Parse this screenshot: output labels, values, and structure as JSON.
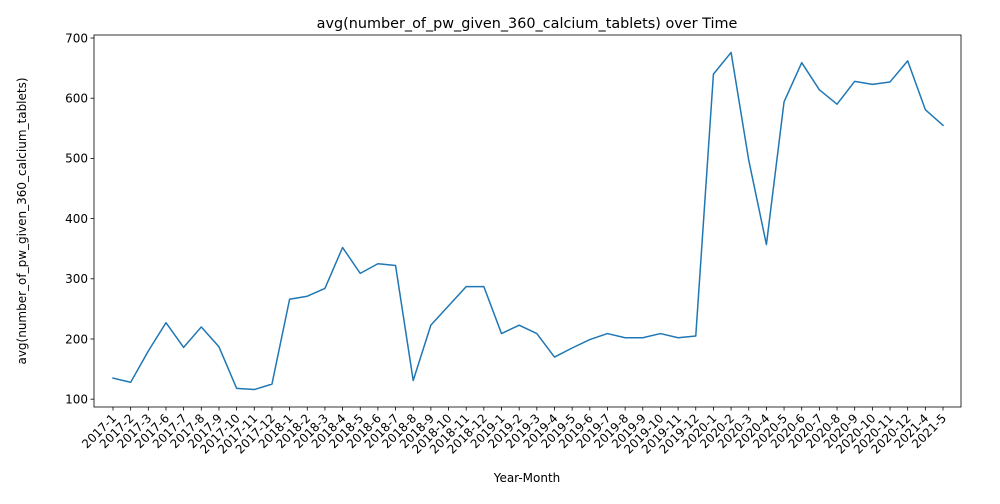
{
  "chart_data": {
    "type": "line",
    "title": "avg(number_of_pw_given_360_calcium_tablets) over Time",
    "xlabel": "Year-Month",
    "ylabel": "avg(number_of_pw_given_360_calcium_tablets)",
    "categories": [
      "2017-1",
      "2017-2",
      "2017-3",
      "2017-6",
      "2017-7",
      "2017-8",
      "2017-9",
      "2017-10",
      "2017-11",
      "2017-12",
      "2018-1",
      "2018-2",
      "2018-3",
      "2018-4",
      "2018-5",
      "2018-6",
      "2018-7",
      "2018-8",
      "2018-9",
      "2018-10",
      "2018-11",
      "2018-12",
      "2019-1",
      "2019-2",
      "2019-3",
      "2019-4",
      "2019-5",
      "2019-6",
      "2019-7",
      "2019-8",
      "2019-9",
      "2019-10",
      "2019-11",
      "2019-12",
      "2020-1",
      "2020-2",
      "2020-3",
      "2020-4",
      "2020-5",
      "2020-6",
      "2020-7",
      "2020-8",
      "2020-9",
      "2020-10",
      "2020-11",
      "2020-12",
      "2021-4",
      "2021-5"
    ],
    "series": [
      {
        "values": [
          135,
          128,
          180,
          227,
          186,
          220,
          187,
          118,
          116,
          125,
          266,
          271,
          284,
          352,
          309,
          325,
          322,
          131,
          223,
          255,
          287,
          287,
          209,
          223,
          209,
          170,
          185,
          199,
          209,
          202,
          202,
          209,
          202,
          205,
          640,
          676,
          497,
          357,
          594,
          659,
          614,
          590,
          628,
          623,
          627,
          662,
          581,
          555
        ],
        "color": "#1f77b4"
      }
    ],
    "yticks": [
      100,
      200,
      300,
      400,
      500,
      600,
      700
    ],
    "ylim": [
      87,
      705
    ],
    "grid": false,
    "legend": "none"
  }
}
